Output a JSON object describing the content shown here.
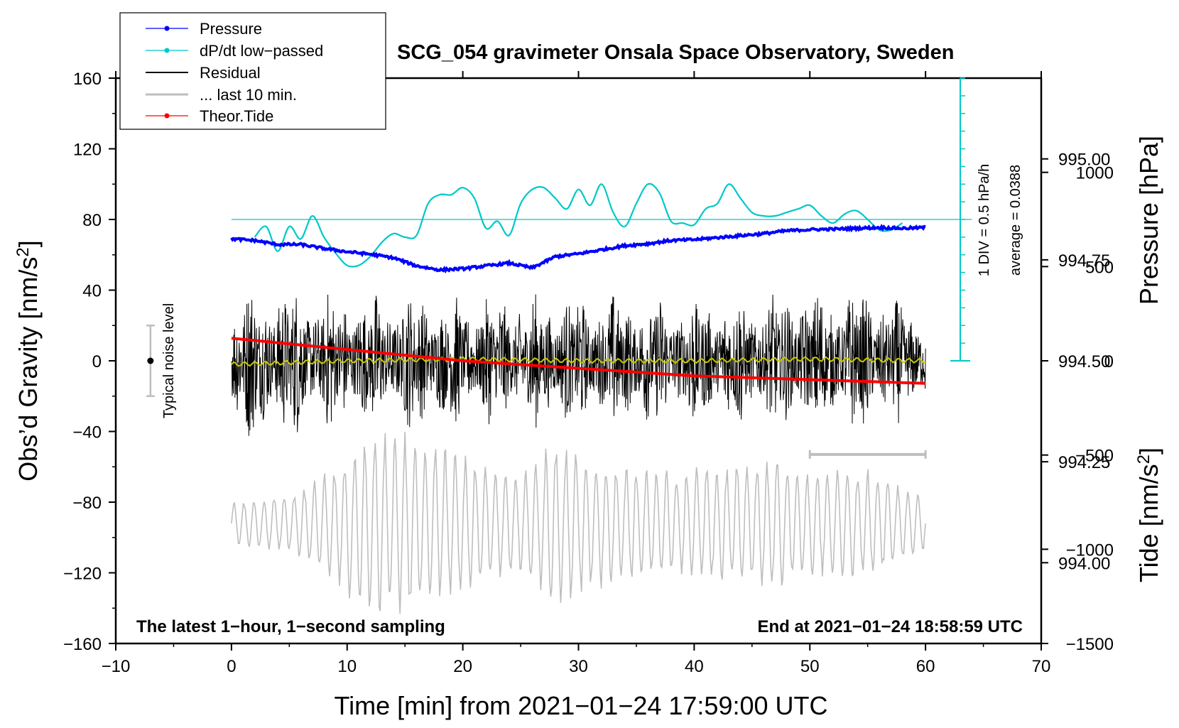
{
  "chart_data": {
    "type": "line",
    "title": "SCG_054 gravimeter Onsala Space Observatory, Sweden",
    "xlabel": "Time [min] from 2021−01−24 17:59:00 UTC",
    "ylabel_main": "Obs’d Gravity [nm/s",
    "ylabel_sup": "2",
    "ylabel_close": "]",
    "ylabel_pressure": "Pressure [hPa]",
    "ylabel_tide": "Tide [nm/s",
    "ylabel_tide_sup": "2",
    "ylabel_tide_close": "]",
    "xlim": [
      -10,
      70
    ],
    "ylim": [
      -160,
      160
    ],
    "pressure_lim": [
      993.8,
      995.2
    ],
    "tide_lim": [
      -1500,
      1500
    ],
    "x_ticks": [
      -10,
      0,
      10,
      20,
      30,
      40,
      50,
      60,
      70
    ],
    "x_tick_labels": [
      "−10",
      "0",
      "10",
      "20",
      "30",
      "40",
      "50",
      "60",
      "70"
    ],
    "y_ticks": [
      -160,
      -120,
      -80,
      -40,
      0,
      40,
      80,
      120,
      160
    ],
    "y_tick_labels": [
      "−160",
      "−120",
      "−80",
      "−40",
      "0",
      "40",
      "80",
      "120",
      "160"
    ],
    "pressure_ticks": [
      994.0,
      994.25,
      994.5,
      994.75,
      995.0
    ],
    "pressure_tick_labels": [
      "994.00",
      "994.25",
      "994.50",
      "994.75",
      "995.00"
    ],
    "tide_ticks": [
      -1500,
      -1000,
      -500,
      0,
      500,
      1000
    ],
    "tide_tick_labels": [
      "−1500",
      "−1000",
      "−500",
      "0",
      "500",
      "1000"
    ],
    "legend": [
      {
        "label": "Pressure",
        "color": "#0000ff",
        "marker": true
      },
      {
        "label": "dP/dt low−passed",
        "color": "#00c8c8",
        "marker": true
      },
      {
        "label": "Residual",
        "color": "#000000",
        "marker": false
      },
      {
        "label": "... last 10 min.",
        "color": "#bebebe",
        "marker": false
      },
      {
        "label": "Theor.Tide",
        "color": "#ff0000",
        "marker": true
      }
    ],
    "annotations": {
      "noise": "Typical noise level",
      "div": "1 DIV = 0.5 hPa/h",
      "average": "average = 0.0388",
      "footer_left": "The latest 1−hour, 1−second sampling",
      "footer_right": "End at 2021−01−24 18:58:59 UTC"
    },
    "noise_bar": {
      "x": -7,
      "center": 0,
      "half_range": 20
    },
    "last10_bar": {
      "x_start": 50,
      "x_end": 60,
      "y": -53
    },
    "dpdt_reference_level": 80,
    "series": [
      {
        "name": "Pressure",
        "axis": "pressure_hPa",
        "color": "#0000ff",
        "x": [
          0,
          2,
          4,
          6,
          8,
          10,
          12,
          14,
          16,
          18,
          20,
          22,
          24,
          26,
          28,
          30,
          32,
          34,
          36,
          38,
          40,
          42,
          44,
          46,
          48,
          50,
          52,
          54,
          56,
          58,
          60
        ],
        "values": [
          994.802,
          994.798,
          994.788,
          994.788,
          994.778,
          994.77,
          994.764,
          994.755,
          994.735,
          994.725,
          994.728,
          994.735,
          994.742,
          994.73,
          994.758,
          994.765,
          994.775,
          994.785,
          994.79,
          994.798,
          994.8,
          994.805,
          994.81,
          994.815,
          994.822,
          994.825,
          994.826,
          994.828,
          994.83,
          994.828,
          994.83
        ]
      },
      {
        "name": "dP/dt low-passed",
        "axis": "gravity_units",
        "color": "#00c8c8",
        "x": [
          2,
          3,
          4,
          5,
          6,
          7,
          8,
          9,
          10,
          11,
          12,
          13,
          14,
          15,
          16,
          17,
          18,
          19,
          20,
          21,
          22,
          23,
          24,
          25,
          26,
          27,
          28,
          29,
          30,
          31,
          32,
          33,
          34,
          35,
          36,
          37,
          38,
          39,
          40,
          41,
          42,
          43,
          44,
          45,
          46,
          47,
          48,
          49,
          50,
          51,
          52,
          53,
          54,
          55,
          56,
          57,
          58
        ],
        "values": [
          70,
          76,
          62,
          76,
          69,
          82,
          70,
          61,
          54,
          54,
          59,
          67,
          72,
          70,
          71,
          89,
          94,
          94,
          98,
          92,
          75,
          79,
          71,
          89,
          97,
          98,
          92,
          86,
          97,
          88,
          100,
          84,
          76,
          89,
          100,
          95,
          79,
          78,
          77,
          86,
          89,
          100,
          92,
          84,
          82,
          82,
          84,
          86,
          88,
          82,
          78,
          83,
          85,
          80,
          74,
          74,
          78
        ]
      },
      {
        "name": "Residual",
        "axis": "gravity_units",
        "color": "#000000",
        "x_range": [
          0,
          60
        ],
        "envelope_x": [
          0,
          5,
          10,
          15,
          20,
          25,
          30,
          35,
          40,
          45,
          50,
          55,
          60
        ],
        "envelope_amplitude": [
          45,
          45,
          40,
          40,
          38,
          40,
          38,
          40,
          38,
          38,
          42,
          42,
          30
        ]
      },
      {
        "name": "Residual low-passed",
        "axis": "gravity_units",
        "color": "#c8c800",
        "x": [
          0,
          10,
          20,
          30,
          40,
          50,
          60
        ],
        "values": [
          -2,
          0,
          1,
          0,
          0,
          1,
          0
        ]
      },
      {
        "name": "... last 10 min.",
        "axis": "gravity_units",
        "color": "#bebebe",
        "x_range": [
          0,
          60
        ],
        "baseline": -92,
        "envelope_x": [
          0,
          5,
          8,
          12,
          15,
          20,
          25,
          28,
          32,
          38,
          42,
          47,
          50,
          55,
          60
        ],
        "envelope_amplitude": [
          12,
          18,
          28,
          55,
          52,
          40,
          28,
          48,
          38,
          30,
          35,
          38,
          30,
          32,
          15
        ]
      },
      {
        "name": "Theor.Tide",
        "axis": "tide_nm_s2",
        "color": "#ff0000",
        "x": [
          0,
          10,
          20,
          30,
          40,
          50,
          60
        ],
        "values": [
          120,
          60,
          0,
          -40,
          -80,
          -100,
          -120
        ]
      }
    ]
  }
}
